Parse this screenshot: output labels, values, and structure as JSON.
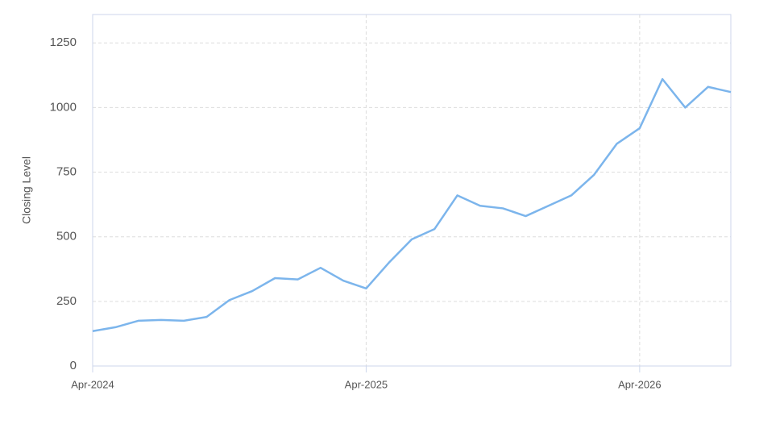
{
  "chart_data": {
    "type": "line",
    "y_label": "Closing Level",
    "x": [
      "2024-04",
      "2024-05",
      "2024-06",
      "2024-07",
      "2024-08",
      "2024-09",
      "2024-10",
      "2024-11",
      "2024-12",
      "2025-01",
      "2025-02",
      "2025-03",
      "2025-04",
      "2025-05",
      "2025-06",
      "2025-07",
      "2025-08",
      "2025-09",
      "2025-10",
      "2025-11",
      "2025-12",
      "2026-01",
      "2026-02",
      "2026-03",
      "2026-04",
      "2026-05",
      "2026-06",
      "2026-07",
      "2026-08"
    ],
    "series": [
      {
        "name": "Closing Level",
        "color": "#7cb5ec",
        "values": [
          135,
          150,
          175,
          178,
          175,
          190,
          255,
          290,
          340,
          335,
          380,
          330,
          300,
          400,
          490,
          530,
          660,
          620,
          610,
          580,
          620,
          660,
          740,
          860,
          920,
          1110,
          1000,
          1080,
          1060
        ]
      }
    ],
    "xlim": [
      "2024-04",
      "2026-08"
    ],
    "xticks": [
      {
        "value": "2024-04",
        "label": "Apr-2024"
      },
      {
        "value": "2025-04",
        "label": "Apr-2025"
      },
      {
        "value": "2026-04",
        "label": "Apr-2026"
      }
    ],
    "ylim": [
      0,
      1360
    ],
    "yticks": [
      0,
      250,
      500,
      750,
      1000,
      1250
    ],
    "grid": true
  }
}
